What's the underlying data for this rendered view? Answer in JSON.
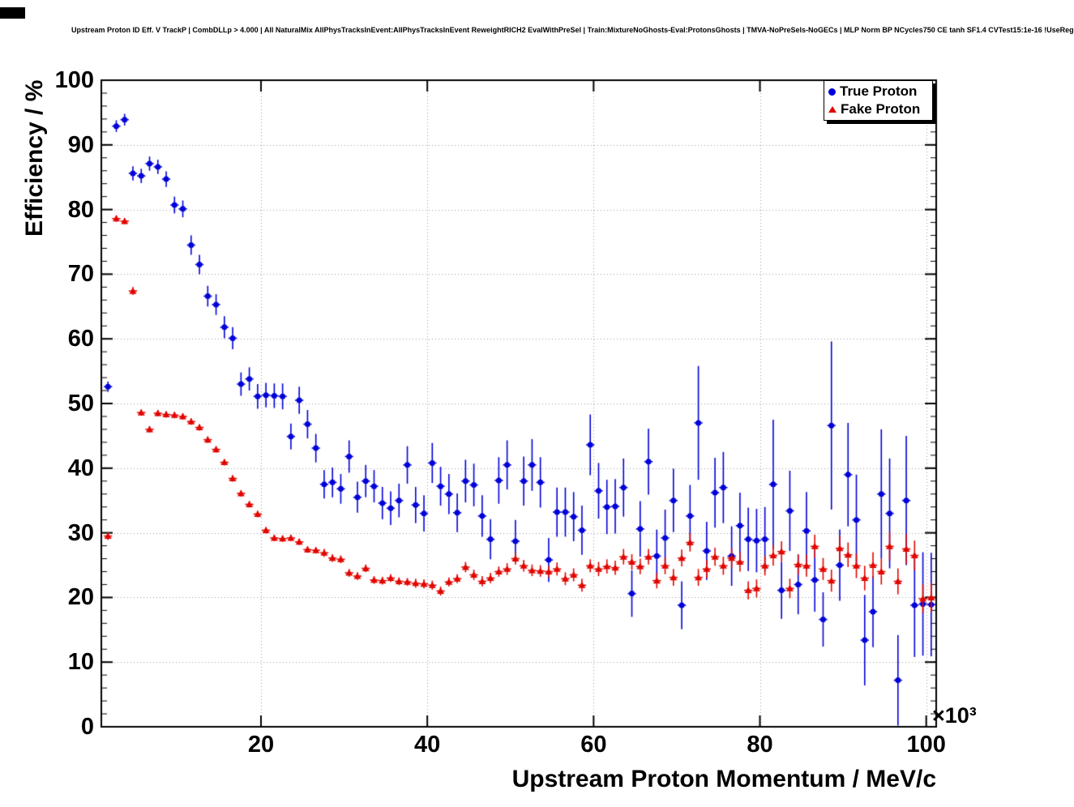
{
  "title": "Upstream Proton ID Eff. V TrackP | CombDLLp > 4.000 | All NaturalMix AllPhysTracksInEvent:AllPhysTracksInEvent ReweightRICH2 EvalWithPreSel | Train:MixtureNoGhosts-Eval:ProtonsGhosts | TMVA-NoPreSels-NoGECs | MLP Norm BP NCycles750 CE tanh SF1.4 CVTest15:1e-16 !UseReg",
  "chart_data": {
    "type": "scatter",
    "title": "Upstream Proton ID Eff. V TrackP | CombDLLp > 4.000 | All NaturalMix AllPhysTracksInEvent:AllPhysTracksInEvent ReweightRICH2 EvalWithPreSel | Train:MixtureNoGhosts-Eval:ProtonsGhosts | TMVA-NoPreSels-NoGECs | MLP Norm BP NCycles750 CE tanh SF1.4 CVTest15:1e-16 !UseReg",
    "xlabel": "Upstream Proton Momentum / MeV/c",
    "ylabel": "Efficiency / %",
    "x_power_label": "×10³",
    "xlim": [
      0.8,
      101.2
    ],
    "ylim": [
      0,
      100
    ],
    "x_ticks": [
      20,
      40,
      60,
      80,
      100
    ],
    "y_ticks": [
      0,
      10,
      20,
      30,
      40,
      50,
      60,
      70,
      80,
      90,
      100
    ],
    "x_minor_step": 2,
    "y_minor_step": 2,
    "grid": true,
    "x_bin_halfwidth": 0.5,
    "colors": {
      "grid": "#999999",
      "frame": "#000000"
    },
    "legend": {
      "position": "top-right",
      "entries": [
        {
          "label": "True Proton",
          "marker": "circle",
          "color": "#0000d9"
        },
        {
          "label": "Fake Proton",
          "marker": "triangle",
          "color": "#e10600"
        }
      ]
    },
    "series": [
      {
        "name": "True Proton",
        "marker": "circle",
        "color": "#0000d9",
        "points": [
          [
            1.6,
            52.6,
            0.8
          ],
          [
            2.6,
            92.9,
            0.9
          ],
          [
            3.6,
            93.9,
            0.9
          ],
          [
            4.6,
            85.6,
            1.1
          ],
          [
            5.6,
            85.2,
            1.1
          ],
          [
            6.6,
            87.1,
            1.1
          ],
          [
            7.6,
            86.6,
            1.1
          ],
          [
            8.6,
            84.7,
            1.2
          ],
          [
            9.6,
            80.7,
            1.3
          ],
          [
            10.6,
            80.1,
            1.3
          ],
          [
            11.6,
            74.5,
            1.5
          ],
          [
            12.6,
            71.5,
            1.5
          ],
          [
            13.6,
            66.6,
            1.6
          ],
          [
            14.6,
            65.3,
            1.6
          ],
          [
            15.6,
            61.8,
            1.7
          ],
          [
            16.6,
            60.1,
            1.7
          ],
          [
            17.6,
            53.0,
            1.8
          ],
          [
            18.6,
            53.8,
            1.8
          ],
          [
            19.6,
            51.1,
            1.9
          ],
          [
            20.6,
            51.3,
            1.9
          ],
          [
            21.6,
            51.2,
            1.9
          ],
          [
            22.6,
            51.1,
            2.0
          ],
          [
            23.6,
            44.9,
            2.0
          ],
          [
            24.6,
            50.5,
            2.1
          ],
          [
            25.6,
            46.8,
            2.2
          ],
          [
            26.6,
            43.1,
            2.2
          ],
          [
            27.6,
            37.5,
            2.2
          ],
          [
            28.6,
            37.8,
            2.3
          ],
          [
            29.6,
            36.8,
            2.3
          ],
          [
            30.6,
            41.8,
            2.5
          ],
          [
            31.6,
            35.5,
            2.4
          ],
          [
            32.6,
            38.0,
            2.5
          ],
          [
            33.6,
            37.2,
            2.5
          ],
          [
            34.6,
            34.6,
            2.5
          ],
          [
            35.6,
            33.8,
            2.6
          ],
          [
            36.6,
            35.0,
            2.6
          ],
          [
            37.6,
            40.5,
            2.9
          ],
          [
            38.6,
            34.3,
            2.8
          ],
          [
            39.6,
            33.0,
            2.8
          ],
          [
            40.6,
            40.8,
            3.1
          ],
          [
            41.6,
            37.2,
            3.0
          ],
          [
            42.6,
            36.0,
            3.1
          ],
          [
            43.6,
            33.1,
            3.0
          ],
          [
            44.6,
            38.0,
            3.3
          ],
          [
            45.6,
            37.4,
            3.3
          ],
          [
            46.6,
            32.6,
            3.2
          ],
          [
            47.6,
            29.0,
            3.1
          ],
          [
            48.6,
            38.1,
            3.6
          ],
          [
            49.6,
            40.5,
            3.8
          ],
          [
            50.6,
            28.7,
            3.3
          ],
          [
            51.6,
            38.0,
            3.8
          ],
          [
            52.6,
            40.5,
            4.0
          ],
          [
            53.6,
            37.8,
            3.9
          ],
          [
            54.6,
            25.8,
            3.4
          ],
          [
            55.6,
            33.2,
            3.8
          ],
          [
            56.6,
            33.2,
            3.8
          ],
          [
            57.6,
            32.5,
            3.8
          ],
          [
            58.6,
            30.4,
            3.8
          ],
          [
            59.6,
            43.6,
            4.7
          ],
          [
            60.6,
            36.5,
            4.3
          ],
          [
            61.6,
            34.0,
            4.2
          ],
          [
            62.6,
            34.1,
            4.2
          ],
          [
            63.6,
            37.0,
            4.5
          ],
          [
            64.6,
            20.6,
            3.6
          ],
          [
            65.6,
            30.6,
            4.3
          ],
          [
            66.6,
            41.0,
            5.1
          ],
          [
            67.6,
            26.4,
            4.1
          ],
          [
            68.6,
            29.2,
            4.4
          ],
          [
            69.6,
            35.0,
            4.9
          ],
          [
            70.6,
            18.8,
            3.7
          ],
          [
            71.6,
            32.6,
            4.8
          ],
          [
            72.6,
            47.0,
            8.8
          ],
          [
            73.6,
            27.2,
            4.5
          ],
          [
            74.6,
            36.2,
            5.4
          ],
          [
            75.6,
            37.0,
            5.5
          ],
          [
            76.6,
            26.4,
            4.6
          ],
          [
            77.6,
            31.1,
            5.1
          ],
          [
            78.6,
            29.0,
            4.9
          ],
          [
            79.6,
            28.8,
            4.9
          ],
          [
            80.6,
            29.0,
            5.0
          ],
          [
            81.6,
            37.5,
            10.0
          ],
          [
            82.6,
            21.1,
            4.4
          ],
          [
            83.6,
            33.4,
            6.2
          ],
          [
            84.6,
            22.0,
            4.6
          ],
          [
            85.6,
            30.3,
            6.0
          ],
          [
            86.6,
            22.7,
            4.9
          ],
          [
            87.6,
            16.6,
            4.2
          ],
          [
            88.6,
            46.6,
            13.0
          ],
          [
            89.6,
            25.0,
            5.5
          ],
          [
            90.6,
            39.0,
            8.0
          ],
          [
            91.6,
            32.0,
            7.0
          ],
          [
            92.6,
            13.4,
            7.0
          ],
          [
            93.6,
            17.8,
            5.5
          ],
          [
            94.6,
            36.0,
            10.0
          ],
          [
            95.6,
            33.0,
            8.5
          ],
          [
            96.6,
            7.2,
            7.0
          ],
          [
            97.6,
            35.0,
            10.0
          ],
          [
            98.6,
            18.8,
            8.0
          ],
          [
            99.6,
            19.0,
            8.0
          ],
          [
            100.6,
            18.9,
            8.0
          ]
        ]
      },
      {
        "name": "Fake Proton",
        "marker": "triangle",
        "color": "#e10600",
        "points": [
          [
            1.6,
            29.5,
            0.6
          ],
          [
            2.6,
            78.6,
            0.5
          ],
          [
            3.6,
            78.2,
            0.5
          ],
          [
            4.6,
            67.4,
            0.6
          ],
          [
            5.6,
            48.6,
            0.5
          ],
          [
            6.6,
            46.0,
            0.5
          ],
          [
            7.6,
            48.5,
            0.5
          ],
          [
            8.6,
            48.3,
            0.5
          ],
          [
            9.6,
            48.2,
            0.5
          ],
          [
            10.6,
            48.0,
            0.5
          ],
          [
            11.6,
            47.2,
            0.5
          ],
          [
            12.6,
            46.3,
            0.5
          ],
          [
            13.6,
            44.4,
            0.5
          ],
          [
            14.6,
            42.9,
            0.5
          ],
          [
            15.6,
            40.9,
            0.5
          ],
          [
            16.6,
            38.4,
            0.5
          ],
          [
            17.6,
            36.1,
            0.5
          ],
          [
            18.6,
            34.4,
            0.5
          ],
          [
            19.6,
            32.9,
            0.5
          ],
          [
            20.6,
            30.4,
            0.5
          ],
          [
            21.6,
            29.2,
            0.5
          ],
          [
            22.6,
            29.1,
            0.5
          ],
          [
            23.6,
            29.2,
            0.5
          ],
          [
            24.6,
            28.6,
            0.5
          ],
          [
            25.6,
            27.4,
            0.5
          ],
          [
            26.6,
            27.3,
            0.5
          ],
          [
            27.6,
            26.9,
            0.6
          ],
          [
            28.6,
            26.1,
            0.6
          ],
          [
            29.6,
            25.9,
            0.6
          ],
          [
            30.6,
            23.8,
            0.6
          ],
          [
            31.6,
            23.3,
            0.6
          ],
          [
            32.6,
            24.5,
            0.6
          ],
          [
            33.6,
            22.7,
            0.6
          ],
          [
            34.6,
            22.6,
            0.6
          ],
          [
            35.6,
            23.0,
            0.6
          ],
          [
            36.6,
            22.5,
            0.6
          ],
          [
            37.6,
            22.4,
            0.6
          ],
          [
            38.6,
            22.2,
            0.7
          ],
          [
            39.6,
            22.1,
            0.7
          ],
          [
            40.6,
            21.9,
            0.7
          ],
          [
            41.6,
            21.0,
            0.7
          ],
          [
            42.6,
            22.4,
            0.7
          ],
          [
            43.6,
            22.9,
            0.7
          ],
          [
            44.6,
            24.7,
            0.8
          ],
          [
            45.6,
            23.5,
            0.8
          ],
          [
            46.6,
            22.5,
            0.8
          ],
          [
            47.6,
            23.0,
            0.8
          ],
          [
            48.6,
            24.0,
            0.8
          ],
          [
            49.6,
            24.4,
            0.9
          ],
          [
            50.6,
            26.0,
            0.9
          ],
          [
            51.6,
            24.9,
            0.9
          ],
          [
            52.6,
            24.2,
            0.9
          ],
          [
            53.6,
            24.1,
            0.9
          ],
          [
            54.6,
            24.0,
            0.9
          ],
          [
            55.6,
            24.4,
            1.0
          ],
          [
            56.6,
            22.9,
            1.0
          ],
          [
            57.6,
            23.5,
            1.0
          ],
          [
            58.6,
            21.9,
            1.0
          ],
          [
            59.6,
            24.9,
            1.0
          ],
          [
            60.6,
            24.4,
            1.1
          ],
          [
            61.6,
            24.8,
            1.1
          ],
          [
            62.6,
            24.6,
            1.1
          ],
          [
            63.6,
            26.3,
            1.2
          ],
          [
            64.6,
            25.5,
            1.2
          ],
          [
            65.6,
            24.8,
            1.2
          ],
          [
            66.6,
            26.3,
            1.2
          ],
          [
            67.6,
            22.6,
            1.2
          ],
          [
            68.6,
            24.9,
            1.3
          ],
          [
            69.6,
            23.1,
            1.3
          ],
          [
            70.6,
            26.1,
            1.3
          ],
          [
            71.6,
            28.5,
            1.4
          ],
          [
            72.6,
            23.1,
            1.3
          ],
          [
            73.6,
            24.4,
            1.4
          ],
          [
            74.6,
            26.3,
            1.4
          ],
          [
            75.6,
            24.9,
            1.4
          ],
          [
            76.6,
            26.1,
            1.5
          ],
          [
            77.6,
            25.5,
            1.5
          ],
          [
            78.6,
            21.1,
            1.4
          ],
          [
            79.6,
            21.4,
            1.4
          ],
          [
            80.6,
            24.9,
            1.5
          ],
          [
            81.6,
            26.5,
            1.6
          ],
          [
            82.6,
            27.1,
            1.6
          ],
          [
            83.6,
            21.4,
            1.5
          ],
          [
            84.6,
            25.1,
            1.6
          ],
          [
            85.6,
            24.9,
            1.7
          ],
          [
            86.6,
            27.9,
            1.8
          ],
          [
            87.6,
            24.4,
            1.7
          ],
          [
            88.6,
            22.6,
            1.7
          ],
          [
            89.6,
            27.6,
            1.9
          ],
          [
            90.6,
            26.6,
            1.9
          ],
          [
            91.6,
            24.9,
            1.9
          ],
          [
            92.6,
            23.0,
            1.9
          ],
          [
            93.6,
            25.0,
            2.0
          ],
          [
            94.6,
            24.0,
            2.0
          ],
          [
            95.6,
            27.9,
            2.2
          ],
          [
            96.6,
            22.5,
            2.0
          ],
          [
            97.6,
            27.5,
            2.3
          ],
          [
            98.6,
            26.5,
            2.3
          ],
          [
            99.6,
            19.8,
            2.2
          ],
          [
            100.6,
            20.0,
            2.2
          ]
        ]
      }
    ]
  }
}
